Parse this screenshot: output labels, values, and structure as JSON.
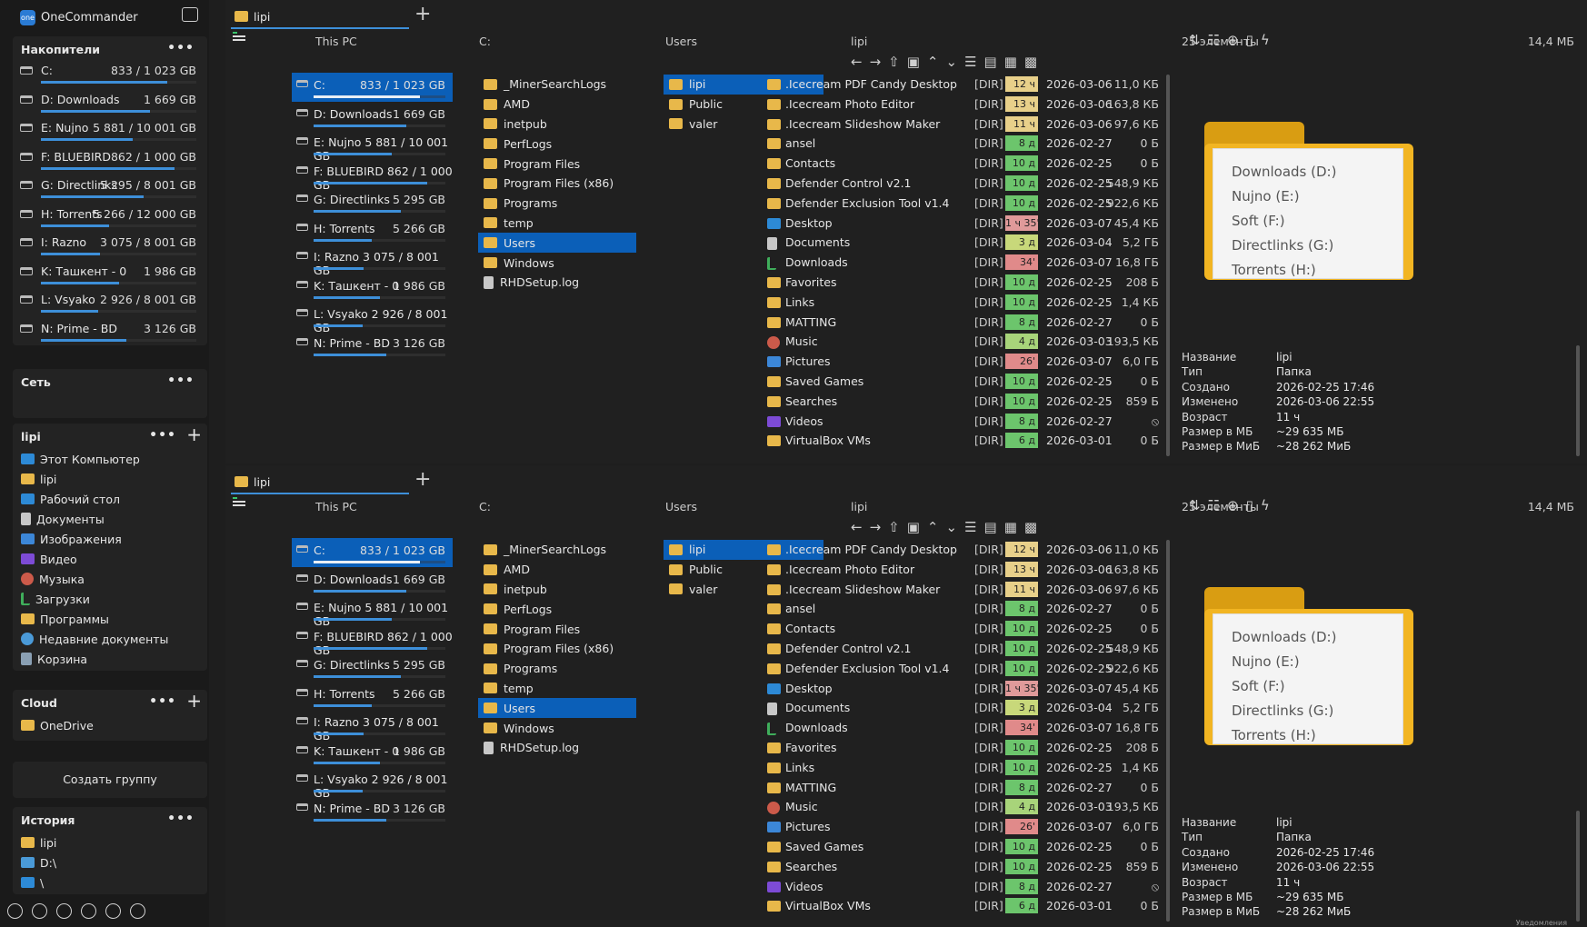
{
  "app": {
    "title": "OneCommander",
    "logo_text": "one"
  },
  "sidebar": {
    "drives_title": "Накопители",
    "drives": [
      {
        "name": "C:",
        "size": "833 / 1 023 GB",
        "fill": 0.81
      },
      {
        "name": "D:  Downloads",
        "size": "1 669 GB",
        "fill": 0.7
      },
      {
        "name": "E:  Nujno",
        "size": "5 881 / 10 001 GB",
        "fill": 0.59
      },
      {
        "name": "F:  BLUEBIRD",
        "size": "862 / 1 000 GB",
        "fill": 0.86
      },
      {
        "name": "G:  Directlinks",
        "size": "5 295 / 8 001 GB",
        "fill": 0.66
      },
      {
        "name": "H:  Torrents",
        "size": "5 266 / 12 000 GB",
        "fill": 0.44
      },
      {
        "name": "I:  Razno",
        "size": "3 075 / 8 001 GB",
        "fill": 0.38
      },
      {
        "name": "K:  Ташкент - 0",
        "size": "1 986 GB",
        "fill": 0.5
      },
      {
        "name": "L:  Vsyako",
        "size": "2 926 / 8 001 GB",
        "fill": 0.37
      },
      {
        "name": "N:  Prime - BD",
        "size": "3 126 GB",
        "fill": 0.55
      }
    ],
    "network_title": "Сеть",
    "user_title": "lipi",
    "user_items": [
      {
        "label": "Этот Компьютер",
        "icon": "pc"
      },
      {
        "label": "lipi",
        "icon": "folder"
      },
      {
        "label": "Рабочий стол",
        "icon": "pc"
      },
      {
        "label": "Документы",
        "icon": "doc"
      },
      {
        "label": "Изображения",
        "icon": "img"
      },
      {
        "label": "Видео",
        "icon": "vid"
      },
      {
        "label": "Музыка",
        "icon": "mus"
      },
      {
        "label": "Загрузки",
        "icon": "dl"
      },
      {
        "label": "Программы",
        "icon": "folder"
      },
      {
        "label": "Недавние документы",
        "icon": "rec"
      },
      {
        "label": "Корзина",
        "icon": "bin"
      }
    ],
    "cloud_title": "Cloud",
    "cloud_items": [
      {
        "label": "OneDrive",
        "icon": "folder"
      }
    ],
    "create_group": "Создать группу",
    "history_title": "История",
    "history_items": [
      {
        "label": "lipi",
        "icon": "folder"
      },
      {
        "label": "D:\\",
        "icon": "app"
      },
      {
        "label": "\\",
        "icon": "pc"
      }
    ],
    "bottom_icons": [
      "settings-icon",
      "info-icon",
      "tag-icon",
      "search-icon",
      "user-icon",
      "window-icon"
    ]
  },
  "window": {
    "minimize": "—",
    "maximize": "☐",
    "close": "✕"
  },
  "pane": {
    "tab_label": "lipi",
    "col1_title": "This PC",
    "col2_title": "C:",
    "col3_title": "Users",
    "col4_title": "lipi",
    "count": "25 элементы",
    "total_size": "14,4 МБ",
    "pc_drives": [
      {
        "name": "C:",
        "size": "833 / 1 023 GB",
        "fill": 0.81
      },
      {
        "name": "D:  Downloads",
        "size": "1 669 GB",
        "fill": 0.7
      },
      {
        "name": "E:  Nujno   5 881 / 10 001 GB",
        "size": "",
        "fill": 0.59
      },
      {
        "name": "F:  BLUEBIRD   862 / 1 000 GB",
        "size": "",
        "fill": 0.86
      },
      {
        "name": "G:  Directlinks",
        "size": "5 295 GB",
        "fill": 0.66
      },
      {
        "name": "H:  Torrents",
        "size": "5 266 GB",
        "fill": 0.44
      },
      {
        "name": "I:  Razno   3 075 / 8 001 GB",
        "size": "",
        "fill": 0.38
      },
      {
        "name": "K:  Ташкент - 0",
        "size": "1 986 GB",
        "fill": 0.5
      },
      {
        "name": "L:  Vsyako   2 926 / 8 001 GB",
        "size": "",
        "fill": 0.37
      },
      {
        "name": "N:  Prime - BD",
        "size": "3 126 GB",
        "fill": 0.55
      }
    ],
    "c_items": [
      "_MinerSearchLogs",
      "AMD",
      "inetpub",
      "PerfLogs",
      "Program Files",
      "Program Files (x86)",
      "Programs",
      "temp",
      "Users",
      "Windows",
      "RHDSetup.log"
    ],
    "c_selected": "Users",
    "users_items": [
      "lipi",
      "Public",
      "valer"
    ],
    "users_selected": "lipi",
    "files": [
      {
        "name": ".Icecream PDF Candy Desktop",
        "type": "[DIR]",
        "age": "12 ч",
        "age_color": "#e8d08a",
        "date": "2026-03-06",
        "size": "11,0 КБ",
        "icon": "folder"
      },
      {
        "name": ".Icecream Photo Editor",
        "type": "[DIR]",
        "age": "13 ч",
        "age_color": "#e8d08a",
        "date": "2026-03-06",
        "size": "163,8 КБ",
        "icon": "folder"
      },
      {
        "name": ".Icecream Slideshow Maker",
        "type": "[DIR]",
        "age": "11 ч",
        "age_color": "#e8d08a",
        "date": "2026-03-06",
        "size": "97,6 КБ",
        "icon": "folder"
      },
      {
        "name": "ansel",
        "type": "[DIR]",
        "age": "8 д",
        "age_color": "#6cc56c",
        "date": "2026-02-27",
        "size": "0 Б",
        "icon": "folder"
      },
      {
        "name": "Contacts",
        "type": "[DIR]",
        "age": "10 д",
        "age_color": "#6cc56c",
        "date": "2026-02-25",
        "size": "0 Б",
        "icon": "folder"
      },
      {
        "name": "Defender Control v2.1",
        "type": "[DIR]",
        "age": "10 д",
        "age_color": "#6cc56c",
        "date": "2026-02-25",
        "size": "548,9 КБ",
        "icon": "folder"
      },
      {
        "name": "Defender Exclusion Tool v1.4",
        "type": "[DIR]",
        "age": "10 д",
        "age_color": "#6cc56c",
        "date": "2026-02-25",
        "size": "922,6 КБ",
        "icon": "folder"
      },
      {
        "name": "Desktop",
        "type": "[DIR]",
        "age": "1 ч 35'",
        "age_color": "#e09a9a",
        "date": "2026-03-07",
        "size": "45,4 КБ",
        "icon": "pc"
      },
      {
        "name": "Documents",
        "type": "[DIR]",
        "age": "3 д",
        "age_color": "#c8d87a",
        "date": "2026-03-04",
        "size": "5,2 ГБ",
        "icon": "doc"
      },
      {
        "name": "Downloads",
        "type": "[DIR]",
        "age": "34'",
        "age_color": "#e08a8a",
        "date": "2026-03-07",
        "size": "16,8 ГБ",
        "icon": "dl"
      },
      {
        "name": "Favorites",
        "type": "[DIR]",
        "age": "10 д",
        "age_color": "#6cc56c",
        "date": "2026-02-25",
        "size": "208 Б",
        "icon": "folder"
      },
      {
        "name": "Links",
        "type": "[DIR]",
        "age": "10 д",
        "age_color": "#6cc56c",
        "date": "2026-02-25",
        "size": "1,4 КБ",
        "icon": "folder"
      },
      {
        "name": "MATTING",
        "type": "[DIR]",
        "age": "8 д",
        "age_color": "#6cc56c",
        "date": "2026-02-27",
        "size": "0 Б",
        "icon": "folder"
      },
      {
        "name": "Music",
        "type": "[DIR]",
        "age": "4 д",
        "age_color": "#a8d47a",
        "date": "2026-03-03",
        "size": "193,5 КБ",
        "icon": "mus"
      },
      {
        "name": "Pictures",
        "type": "[DIR]",
        "age": "26'",
        "age_color": "#e08a8a",
        "date": "2026-03-07",
        "size": "6,0 ГБ",
        "icon": "img"
      },
      {
        "name": "Saved Games",
        "type": "[DIR]",
        "age": "10 д",
        "age_color": "#6cc56c",
        "date": "2026-02-25",
        "size": "0 Б",
        "icon": "folder"
      },
      {
        "name": "Searches",
        "type": "[DIR]",
        "age": "10 д",
        "age_color": "#6cc56c",
        "date": "2026-02-25",
        "size": "859 Б",
        "icon": "folder"
      },
      {
        "name": "Videos",
        "type": "[DIR]",
        "age": "8 д",
        "age_color": "#6cc56c",
        "date": "2026-02-27",
        "size": "⦸",
        "icon": "vid"
      },
      {
        "name": "VirtualBox VMs",
        "type": "[DIR]",
        "age": "6 д",
        "age_color": "#6cc56c",
        "date": "2026-03-01",
        "size": "0 Б",
        "icon": "folder"
      }
    ],
    "preview_lines": [
      "Downloads (D:)",
      "Nujno (E:)",
      "Soft (F:)",
      "Directlinks (G:)",
      "Torrents (H:)"
    ],
    "props": [
      {
        "k": "Название",
        "v": "lipi"
      },
      {
        "k": "Тип",
        "v": "Папка"
      },
      {
        "k": "Создано",
        "v": "2026-02-25  17:46"
      },
      {
        "k": "Изменено",
        "v": "2026-03-06  22:55"
      },
      {
        "k": "Возраст",
        "v": "11 ч"
      },
      {
        "k": "Размер в МБ",
        "v": "~29 635 МБ"
      },
      {
        "k": "Размер в МиБ",
        "v": "~28 262 МиБ"
      }
    ]
  },
  "notification": "Уведомления"
}
